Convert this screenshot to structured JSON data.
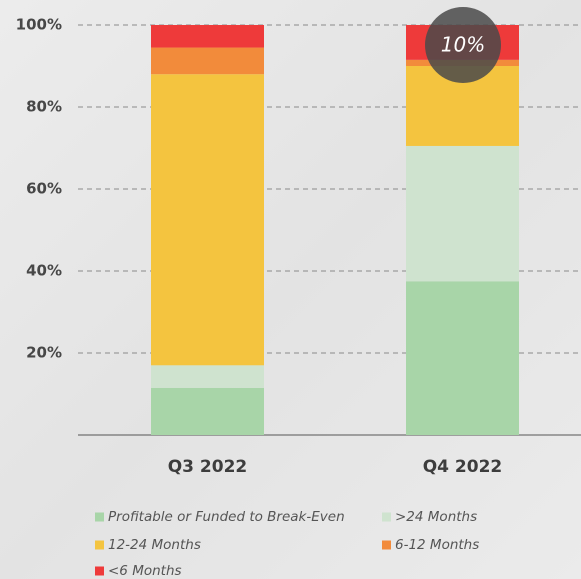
{
  "chart_data": {
    "type": "stacked_bar",
    "categories": [
      "Q3 2022",
      "Q4 2022"
    ],
    "series": [
      {
        "name": "Profitable or Funded to Break-Even",
        "color": "#a8d5a8",
        "values": [
          11.5,
          37.5
        ]
      },
      {
        "name": ">24 Months",
        "color": "#cfe3cf",
        "values": [
          5.5,
          33
        ]
      },
      {
        "name": "12-24 Months",
        "color": "#f4c43f",
        "values": [
          71,
          19.5
        ]
      },
      {
        "name": "6-12 Months",
        "color": "#f28b3b",
        "values": [
          6.5,
          1.5
        ]
      },
      {
        "name": "<6 Months",
        "color": "#ee3a3a",
        "values": [
          5.5,
          8.5
        ]
      }
    ],
    "ylim": [
      0,
      100
    ],
    "yticks": [
      {
        "value": 20,
        "label": "20%"
      },
      {
        "value": 40,
        "label": "40%"
      },
      {
        "value": 60,
        "label": "60%"
      },
      {
        "value": 80,
        "label": "80%"
      },
      {
        "value": 100,
        "label": "100%"
      }
    ],
    "grid": true,
    "annotation": "10%"
  }
}
